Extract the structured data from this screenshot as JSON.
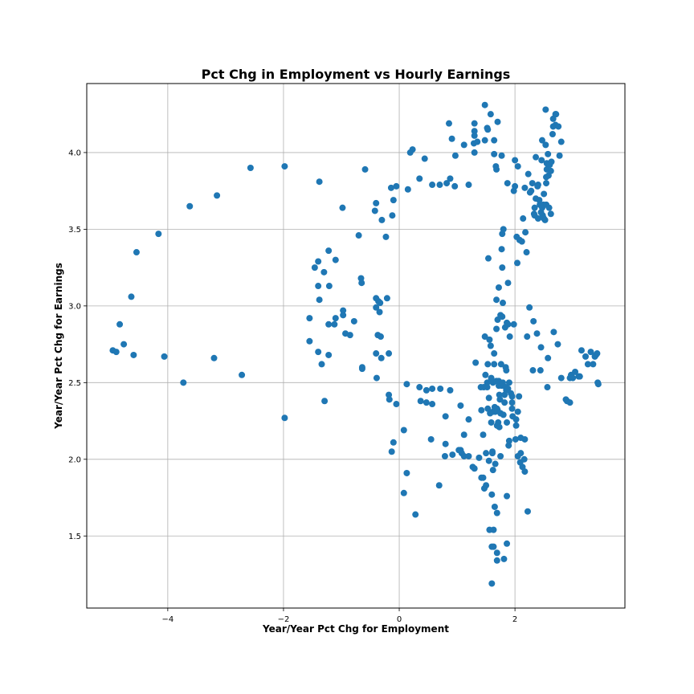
{
  "chart_data": {
    "type": "scatter",
    "title": "Pct Chg in Employment vs Hourly Earnings",
    "xlabel": "Year/Year Pct Chg for Employment",
    "ylabel": "Year/Year Pct Chg for Earnings",
    "xlim": [
      -5.4,
      3.9
    ],
    "ylim": [
      1.03,
      4.45
    ],
    "xticks": [
      -4,
      -2,
      0,
      2
    ],
    "yticks": [
      1.5,
      2.0,
      2.5,
      3.0,
      3.5,
      4.0
    ],
    "xtick_labels": [
      "−4",
      "−2",
      "0",
      "2"
    ],
    "ytick_labels": [
      "1.5",
      "2.0",
      "2.5",
      "3.0",
      "3.5",
      "4.0"
    ],
    "grid": true,
    "marker_color": "#1f77b4",
    "points": [
      [
        -4.95,
        2.71
      ],
      [
        -4.89,
        2.7
      ],
      [
        -4.83,
        2.88
      ],
      [
        -4.76,
        2.75
      ],
      [
        -4.63,
        3.06
      ],
      [
        -4.59,
        2.68
      ],
      [
        -4.54,
        3.35
      ],
      [
        -4.16,
        3.47
      ],
      [
        -4.06,
        2.67
      ],
      [
        -3.73,
        2.5
      ],
      [
        -3.62,
        3.65
      ],
      [
        -3.2,
        2.66
      ],
      [
        -3.15,
        3.72
      ],
      [
        -2.72,
        2.55
      ],
      [
        -2.57,
        3.9
      ],
      [
        -1.98,
        3.91
      ],
      [
        -1.98,
        2.27
      ],
      [
        -1.55,
        2.92
      ],
      [
        -1.55,
        2.77
      ],
      [
        -1.46,
        3.25
      ],
      [
        -1.4,
        3.29
      ],
      [
        -1.4,
        3.13
      ],
      [
        -1.4,
        2.7
      ],
      [
        -1.38,
        3.04
      ],
      [
        -1.38,
        3.81
      ],
      [
        -1.34,
        2.62
      ],
      [
        -1.3,
        3.22
      ],
      [
        -1.29,
        2.38
      ],
      [
        -1.22,
        3.36
      ],
      [
        -1.21,
        3.13
      ],
      [
        -1.22,
        2.88
      ],
      [
        -1.22,
        2.68
      ],
      [
        -1.12,
        2.88
      ],
      [
        -1.1,
        3.3
      ],
      [
        -1.1,
        2.92
      ],
      [
        -0.98,
        3.64
      ],
      [
        -0.97,
        2.94
      ],
      [
        -0.97,
        2.97
      ],
      [
        -0.93,
        2.82
      ],
      [
        -0.85,
        2.81
      ],
      [
        -0.78,
        2.9
      ],
      [
        -0.7,
        3.46
      ],
      [
        -0.66,
        3.18
      ],
      [
        -0.65,
        3.15
      ],
      [
        -0.64,
        2.6
      ],
      [
        -0.64,
        2.59
      ],
      [
        -0.59,
        3.89
      ],
      [
        -0.42,
        3.62
      ],
      [
        -0.4,
        3.67
      ],
      [
        -0.4,
        3.05
      ],
      [
        -0.4,
        2.99
      ],
      [
        -0.4,
        2.69
      ],
      [
        -0.39,
        2.53
      ],
      [
        -0.37,
        2.81
      ],
      [
        -0.36,
        3.03
      ],
      [
        -0.34,
        2.96
      ],
      [
        -0.33,
        3.02
      ],
      [
        -0.32,
        2.8
      ],
      [
        -0.3,
        3.56
      ],
      [
        -0.31,
        2.66
      ],
      [
        -0.23,
        3.45
      ],
      [
        -0.21,
        3.05
      ],
      [
        -0.18,
        2.69
      ],
      [
        -0.18,
        2.42
      ],
      [
        -0.17,
        2.39
      ],
      [
        -0.13,
        2.05
      ],
      [
        -0.14,
        3.77
      ],
      [
        -0.12,
        3.59
      ],
      [
        -0.1,
        2.11
      ],
      [
        -0.1,
        3.69
      ],
      [
        -0.05,
        3.78
      ],
      [
        -0.05,
        2.36
      ],
      [
        0.08,
        1.78
      ],
      [
        0.08,
        2.19
      ],
      [
        0.13,
        1.91
      ],
      [
        0.13,
        2.49
      ],
      [
        0.15,
        3.76
      ],
      [
        0.19,
        4.0
      ],
      [
        0.23,
        4.02
      ],
      [
        0.28,
        1.64
      ],
      [
        0.35,
        3.83
      ],
      [
        0.35,
        2.47
      ],
      [
        0.37,
        2.38
      ],
      [
        0.44,
        3.96
      ],
      [
        0.47,
        2.45
      ],
      [
        0.47,
        2.37
      ],
      [
        0.55,
        2.13
      ],
      [
        0.57,
        2.46
      ],
      [
        0.57,
        2.36
      ],
      [
        0.57,
        3.79
      ],
      [
        0.69,
        1.83
      ],
      [
        0.7,
        3.79
      ],
      [
        0.71,
        2.46
      ],
      [
        0.79,
        2.02
      ],
      [
        0.8,
        2.28
      ],
      [
        0.8,
        2.1
      ],
      [
        0.82,
        3.8
      ],
      [
        0.86,
        4.19
      ],
      [
        0.88,
        3.83
      ],
      [
        0.88,
        2.45
      ],
      [
        0.91,
        4.09
      ],
      [
        0.92,
        2.03
      ],
      [
        0.96,
        3.78
      ],
      [
        0.97,
        3.98
      ],
      [
        1.03,
        2.06
      ],
      [
        1.06,
        2.06
      ],
      [
        1.06,
        2.35
      ],
      [
        1.08,
        2.04
      ],
      [
        1.12,
        4.05
      ],
      [
        1.12,
        2.16
      ],
      [
        1.12,
        2.02
      ],
      [
        1.2,
        3.79
      ],
      [
        1.2,
        2.26
      ],
      [
        1.2,
        2.02
      ],
      [
        1.27,
        1.95
      ],
      [
        1.29,
        4.06
      ],
      [
        1.3,
        4.19
      ],
      [
        1.3,
        4.14
      ],
      [
        1.3,
        4.11
      ],
      [
        1.3,
        4.0
      ],
      [
        1.3,
        1.94
      ],
      [
        1.32,
        2.63
      ],
      [
        1.35,
        4.07
      ],
      [
        1.38,
        2.01
      ],
      [
        1.41,
        2.47
      ],
      [
        1.42,
        2.32
      ],
      [
        1.42,
        1.88
      ],
      [
        1.45,
        1.88
      ],
      [
        1.45,
        2.16
      ],
      [
        1.46,
        2.47
      ],
      [
        1.47,
        1.81
      ],
      [
        1.48,
        4.31
      ],
      [
        1.48,
        4.08
      ],
      [
        1.48,
        2.8
      ],
      [
        1.49,
        2.55
      ],
      [
        1.5,
        2.04
      ],
      [
        1.5,
        1.83
      ],
      [
        1.52,
        4.16
      ],
      [
        1.52,
        2.5
      ],
      [
        1.52,
        2.47
      ],
      [
        1.53,
        4.15
      ],
      [
        1.53,
        2.62
      ],
      [
        1.53,
        2.33
      ],
      [
        1.54,
        3.31
      ],
      [
        1.55,
        2.4
      ],
      [
        1.55,
        1.99
      ],
      [
        1.56,
        2.78
      ],
      [
        1.56,
        1.54
      ],
      [
        1.57,
        2.3
      ],
      [
        1.58,
        4.25
      ],
      [
        1.58,
        2.74
      ],
      [
        1.59,
        2.53
      ],
      [
        1.59,
        2.52
      ],
      [
        1.59,
        2.24
      ],
      [
        1.6,
        1.77
      ],
      [
        1.6,
        1.43
      ],
      [
        1.6,
        1.19
      ],
      [
        1.61,
        2.05
      ],
      [
        1.61,
        2.04
      ],
      [
        1.62,
        2.5
      ],
      [
        1.62,
        2.31
      ],
      [
        1.62,
        1.93
      ],
      [
        1.63,
        1.54
      ],
      [
        1.63,
        1.43
      ],
      [
        1.64,
        4.08
      ],
      [
        1.64,
        3.99
      ],
      [
        1.64,
        2.69
      ],
      [
        1.64,
        2.62
      ],
      [
        1.65,
        2.34
      ],
      [
        1.65,
        1.69
      ],
      [
        1.66,
        2.31
      ],
      [
        1.66,
        1.97
      ],
      [
        1.67,
        3.91
      ],
      [
        1.68,
        3.89
      ],
      [
        1.68,
        3.04
      ],
      [
        1.68,
        2.85
      ],
      [
        1.68,
        2.51
      ],
      [
        1.69,
        2.33
      ],
      [
        1.69,
        2.22
      ],
      [
        1.69,
        1.65
      ],
      [
        1.69,
        1.39
      ],
      [
        1.69,
        1.34
      ],
      [
        1.7,
        4.2
      ],
      [
        1.7,
        2.91
      ],
      [
        1.7,
        2.32
      ],
      [
        1.71,
        2.24
      ],
      [
        1.72,
        3.12
      ],
      [
        1.72,
        2.51
      ],
      [
        1.72,
        2.48
      ],
      [
        1.73,
        2.42
      ],
      [
        1.73,
        2.21
      ],
      [
        1.74,
        2.39
      ],
      [
        1.75,
        2.94
      ],
      [
        1.75,
        2.3
      ],
      [
        1.75,
        2.02
      ],
      [
        1.76,
        2.62
      ],
      [
        1.77,
        3.98
      ],
      [
        1.77,
        3.37
      ],
      [
        1.77,
        2.48
      ],
      [
        1.78,
        3.47
      ],
      [
        1.78,
        3.25
      ],
      [
        1.78,
        2.93
      ],
      [
        1.79,
        3.02
      ],
      [
        1.79,
        2.5
      ],
      [
        1.8,
        3.5
      ],
      [
        1.8,
        2.29
      ],
      [
        1.81,
        1.35
      ],
      [
        1.82,
        2.37
      ],
      [
        1.82,
        2.42
      ],
      [
        1.83,
        2.86
      ],
      [
        1.84,
        2.6
      ],
      [
        1.84,
        2.47
      ],
      [
        1.85,
        2.58
      ],
      [
        1.85,
        2.45
      ],
      [
        1.86,
        2.89
      ],
      [
        1.86,
        2.24
      ],
      [
        1.86,
        1.76
      ],
      [
        1.86,
        1.45
      ],
      [
        1.87,
        3.8
      ],
      [
        1.88,
        3.15
      ],
      [
        1.88,
        2.88
      ],
      [
        1.88,
        2.46
      ],
      [
        1.89,
        2.09
      ],
      [
        1.9,
        2.12
      ],
      [
        1.9,
        2.5
      ],
      [
        1.91,
        2.8
      ],
      [
        1.93,
        2.43
      ],
      [
        1.95,
        2.41
      ],
      [
        1.95,
        2.37
      ],
      [
        1.95,
        2.33
      ],
      [
        1.96,
        2.28
      ],
      [
        1.98,
        2.88
      ],
      [
        1.98,
        3.75
      ],
      [
        2.0,
        3.78
      ],
      [
        2.0,
        3.95
      ],
      [
        2.01,
        2.13
      ],
      [
        2.02,
        2.22
      ],
      [
        2.02,
        2.26
      ],
      [
        2.03,
        3.45
      ],
      [
        2.04,
        3.28
      ],
      [
        2.05,
        3.91
      ],
      [
        2.05,
        2.31
      ],
      [
        2.05,
        2.02
      ],
      [
        2.07,
        2.41
      ],
      [
        2.08,
        3.43
      ],
      [
        2.09,
        1.98
      ],
      [
        2.1,
        2.04
      ],
      [
        2.1,
        2.14
      ],
      [
        2.12,
        3.42
      ],
      [
        2.13,
        1.95
      ],
      [
        2.14,
        3.57
      ],
      [
        2.16,
        2.0
      ],
      [
        2.17,
        1.92
      ],
      [
        2.17,
        2.13
      ],
      [
        2.17,
        3.77
      ],
      [
        2.18,
        3.48
      ],
      [
        2.2,
        3.35
      ],
      [
        2.21,
        2.8
      ],
      [
        2.22,
        1.66
      ],
      [
        2.23,
        3.86
      ],
      [
        2.25,
        2.99
      ],
      [
        2.26,
        3.74
      ],
      [
        2.28,
        3.75
      ],
      [
        2.3,
        3.8
      ],
      [
        2.31,
        2.58
      ],
      [
        2.32,
        2.9
      ],
      [
        2.33,
        3.6
      ],
      [
        2.34,
        3.64
      ],
      [
        2.34,
        3.59
      ],
      [
        2.36,
        3.97
      ],
      [
        2.36,
        3.7
      ],
      [
        2.38,
        2.82
      ],
      [
        2.39,
        3.78
      ],
      [
        2.4,
        3.79
      ],
      [
        2.4,
        3.57
      ],
      [
        2.42,
        3.69
      ],
      [
        2.43,
        3.66
      ],
      [
        2.44,
        2.58
      ],
      [
        2.45,
        3.61
      ],
      [
        2.45,
        2.73
      ],
      [
        2.46,
        3.95
      ],
      [
        2.47,
        3.64
      ],
      [
        2.47,
        4.08
      ],
      [
        2.48,
        3.59
      ],
      [
        2.49,
        3.66
      ],
      [
        2.5,
        3.57
      ],
      [
        2.5,
        3.73
      ],
      [
        2.52,
        3.56
      ],
      [
        2.53,
        4.28
      ],
      [
        2.53,
        4.05
      ],
      [
        2.54,
        3.66
      ],
      [
        2.54,
        3.8
      ],
      [
        2.54,
        3.84
      ],
      [
        2.55,
        3.89
      ],
      [
        2.55,
        3.93
      ],
      [
        2.56,
        2.47
      ],
      [
        2.57,
        3.99
      ],
      [
        2.57,
        2.66
      ],
      [
        2.58,
        3.85
      ],
      [
        2.59,
        3.64
      ],
      [
        2.6,
        3.92
      ],
      [
        2.62,
        3.88
      ],
      [
        2.62,
        3.6
      ],
      [
        2.63,
        3.94
      ],
      [
        2.65,
        4.12
      ],
      [
        2.66,
        4.17
      ],
      [
        2.66,
        4.22
      ],
      [
        2.67,
        2.83
      ],
      [
        2.7,
        4.25
      ],
      [
        2.7,
        4.18
      ],
      [
        2.71,
        4.25
      ],
      [
        2.74,
        2.75
      ],
      [
        2.75,
        4.17
      ],
      [
        2.77,
        3.98
      ],
      [
        2.8,
        4.07
      ],
      [
        2.8,
        2.53
      ],
      [
        2.88,
        2.39
      ],
      [
        2.9,
        2.38
      ],
      [
        2.95,
        2.53
      ],
      [
        2.95,
        2.37
      ],
      [
        2.97,
        2.55
      ],
      [
        3.0,
        2.53
      ],
      [
        3.04,
        2.57
      ],
      [
        3.1,
        2.54
      ],
      [
        3.12,
        2.54
      ],
      [
        3.15,
        2.71
      ],
      [
        3.22,
        2.67
      ],
      [
        3.26,
        2.62
      ],
      [
        3.31,
        2.7
      ],
      [
        3.35,
        2.62
      ],
      [
        3.38,
        2.67
      ],
      [
        3.4,
        2.68
      ],
      [
        3.42,
        2.69
      ],
      [
        3.43,
        2.5
      ],
      [
        3.44,
        2.49
      ]
    ]
  }
}
